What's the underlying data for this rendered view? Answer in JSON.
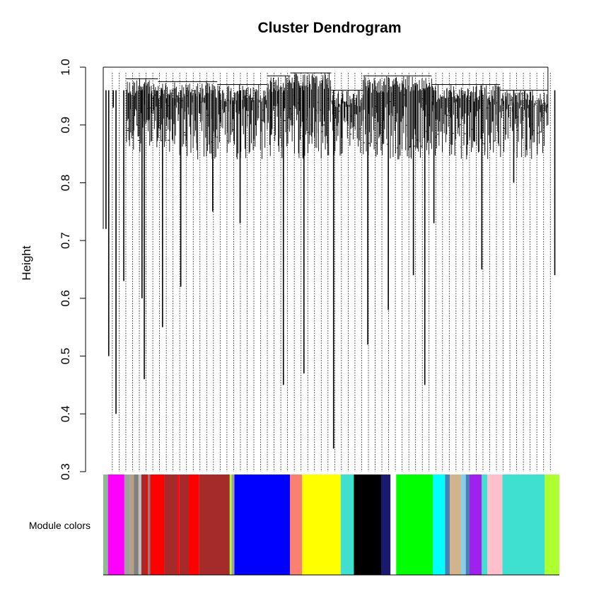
{
  "chart_data": {
    "type": "dendrogram",
    "title": "Cluster Dendrogram",
    "ylabel": "Height",
    "xlabel": "",
    "ylim": [
      0.3,
      1.0
    ],
    "yticks": [
      {
        "value": 0.3,
        "label": "0.3"
      },
      {
        "value": 0.4,
        "label": "0.4"
      },
      {
        "value": 0.5,
        "label": "0.5"
      },
      {
        "value": 0.6,
        "label": "0.6"
      },
      {
        "value": 0.7,
        "label": "0.7"
      },
      {
        "value": 0.8,
        "label": "0.8"
      },
      {
        "value": 0.9,
        "label": "0.9"
      },
      {
        "value": 1.0,
        "label": "1.0"
      }
    ],
    "color_bar_label": "Module colors",
    "modules": [
      {
        "color": "#8fbc8f",
        "share": 0.01
      },
      {
        "color": "#ff00ff",
        "share": 0.035
      },
      {
        "color": "#a0a0a0",
        "share": 0.012
      },
      {
        "color": "#b8a080",
        "share": 0.008
      },
      {
        "color": "#808080",
        "share": 0.01
      },
      {
        "color": "#c0c0c0",
        "share": 0.006
      },
      {
        "color": "#a52a2a",
        "share": 0.01
      },
      {
        "color": "#ff0000",
        "share": 0.004
      },
      {
        "color": "#808080",
        "share": 0.005
      },
      {
        "color": "#ff0000",
        "share": 0.03
      },
      {
        "color": "#a52a2a",
        "share": 0.028
      },
      {
        "color": "#ff0000",
        "share": 0.004
      },
      {
        "color": "#a52a2a",
        "share": 0.02
      },
      {
        "color": "#ff0000",
        "share": 0.022
      },
      {
        "color": "#a52a2a",
        "share": 0.065
      },
      {
        "color": "#adff2f",
        "share": 0.004
      },
      {
        "color": "#a0a0a0",
        "share": 0.006
      },
      {
        "color": "#0000ff",
        "share": 0.118
      },
      {
        "color": "#fa8072",
        "share": 0.026
      },
      {
        "color": "#ffff00",
        "share": 0.082
      },
      {
        "color": "#40e0d0",
        "share": 0.028
      },
      {
        "color": "#000000",
        "share": 0.058
      },
      {
        "color": "#191970",
        "share": 0.02
      },
      {
        "color": "#ffffff",
        "share": 0.012
      },
      {
        "color": "#00ff00",
        "share": 0.078
      },
      {
        "color": "#00ffff",
        "share": 0.026
      },
      {
        "color": "#4682b4",
        "share": 0.01
      },
      {
        "color": "#d2b48c",
        "share": 0.024
      },
      {
        "color": "#87ceeb",
        "share": 0.01
      },
      {
        "color": "#4682b4",
        "share": 0.008
      },
      {
        "color": "#a020f0",
        "share": 0.026
      },
      {
        "color": "#40e0d0",
        "share": 0.012
      },
      {
        "color": "#ffc0cb",
        "share": 0.032
      },
      {
        "color": "#40e0d0",
        "share": 0.09
      },
      {
        "color": "#adff2f",
        "share": 0.031
      }
    ],
    "major_branches": [
      {
        "leaf": 0.006,
        "height": 0.72
      },
      {
        "leaf": 0.012,
        "height": 0.5
      },
      {
        "leaf": 0.022,
        "height": 0.93
      },
      {
        "leaf": 0.028,
        "height": 0.4
      },
      {
        "leaf": 0.045,
        "height": 0.63
      },
      {
        "leaf": 0.085,
        "height": 0.6
      },
      {
        "leaf": 0.09,
        "height": 0.46
      },
      {
        "leaf": 0.13,
        "height": 0.55
      },
      {
        "leaf": 0.17,
        "height": 0.62
      },
      {
        "leaf": 0.24,
        "height": 0.75
      },
      {
        "leaf": 0.3,
        "height": 0.73
      },
      {
        "leaf": 0.395,
        "height": 0.45
      },
      {
        "leaf": 0.44,
        "height": 0.47
      },
      {
        "leaf": 0.505,
        "height": 0.34
      },
      {
        "leaf": 0.58,
        "height": 0.52
      },
      {
        "leaf": 0.625,
        "height": 0.58
      },
      {
        "leaf": 0.68,
        "height": 0.64
      },
      {
        "leaf": 0.705,
        "height": 0.45
      },
      {
        "leaf": 0.725,
        "height": 0.73
      },
      {
        "leaf": 0.83,
        "height": 0.65
      },
      {
        "leaf": 0.9,
        "height": 0.8
      },
      {
        "leaf": 0.99,
        "height": 0.64
      }
    ]
  }
}
